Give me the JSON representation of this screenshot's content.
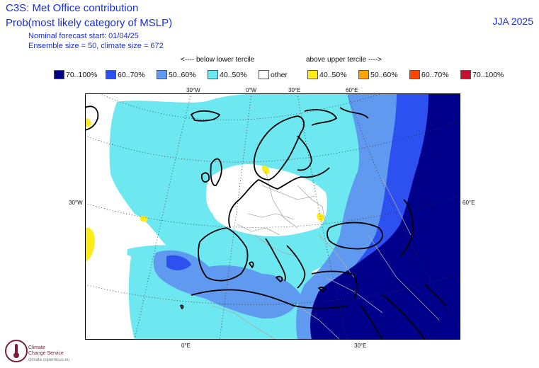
{
  "header": {
    "title": "C3S: Met Office contribution",
    "subtitle": "Prob(most likely category of MSLP)",
    "forecast_start": "Nominal forecast start: 01/04/25",
    "ensemble": "Ensemble size = 50, climate size = 672",
    "season": "JJA 2025"
  },
  "tercile": {
    "below": "<---- below lower tercile",
    "above": "above upper tercile ---->"
  },
  "legend": [
    {
      "label": "70..100%",
      "color": "#00008b"
    },
    {
      "label": "60..70%",
      "color": "#2d50f0"
    },
    {
      "label": "50..60%",
      "color": "#5f9af0"
    },
    {
      "label": "40..50%",
      "color": "#6de8f0"
    },
    {
      "label": "other",
      "color": "#ffffff"
    },
    {
      "label": "40..50%",
      "color": "#ffeb1a"
    },
    {
      "label": "50..60%",
      "color": "#ffa500"
    },
    {
      "label": "60..70%",
      "color": "#ff4500"
    },
    {
      "label": "70..100%",
      "color": "#c8102e"
    }
  ],
  "axes": {
    "top": [
      "30°W",
      "0°W",
      "30°E",
      "60°E"
    ],
    "left": "30°W",
    "right": "60°E",
    "bottom": [
      "0°E",
      "30°E"
    ]
  },
  "logo": {
    "name_line1": "Climate",
    "name_line2": "Change Service",
    "url": "climate.copernicus.eu"
  }
}
